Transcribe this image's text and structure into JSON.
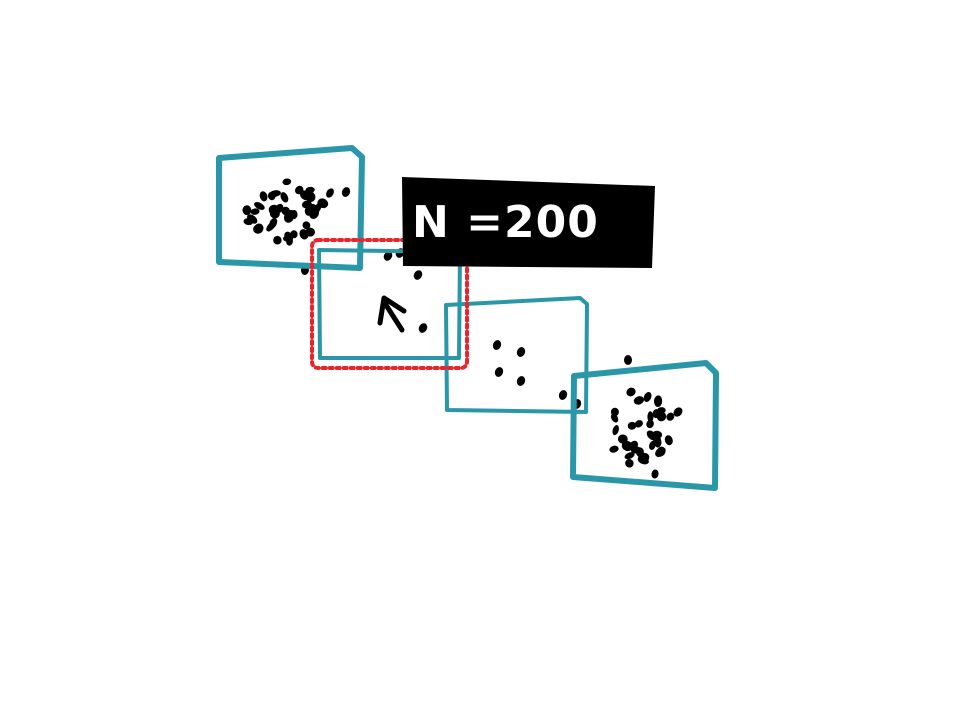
{
  "diagram": {
    "label": "N =200",
    "colors": {
      "background": "#ffffff",
      "window_border": "#2a97a8",
      "selection_border": "#e8242d",
      "dot": "#000000",
      "label_background": "#000000",
      "label_text": "#ffffff"
    },
    "windows": [
      {
        "density": "dense"
      },
      {
        "density": "sparse",
        "selected": true
      },
      {
        "density": "sparse"
      },
      {
        "density": "dense"
      }
    ],
    "cursor": "arrow-cursor-icon"
  }
}
